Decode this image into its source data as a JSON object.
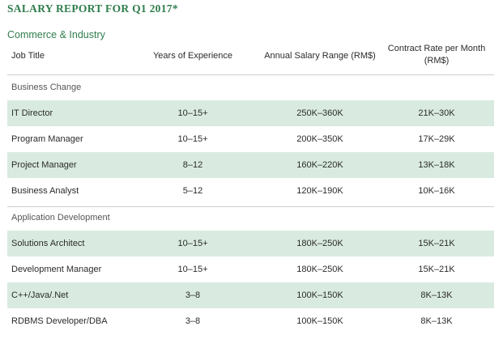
{
  "title": "SALARY REPORT FOR Q1 2017*",
  "section": "Commerce & Industry",
  "headers": {
    "job_title": "Job Title",
    "years": "Years of Experience",
    "salary": "Annual Salary Range (RM$)",
    "rate_line1": "Contract Rate per Month",
    "rate_line2": "(RM$)"
  },
  "groups": [
    {
      "label": "Business Change",
      "rows": [
        {
          "job": "IT Director",
          "years": "10–15+",
          "salary": "250K–360K",
          "rate": "21K–30K"
        },
        {
          "job": "Program Manager",
          "years": "10–15+",
          "salary": "200K–350K",
          "rate": "17K–29K"
        },
        {
          "job": "Project Manager",
          "years": "8–12",
          "salary": "160K–220K",
          "rate": "13K–18K"
        },
        {
          "job": "Business Analyst",
          "years": "5–12",
          "salary": "120K–190K",
          "rate": "10K–16K"
        }
      ]
    },
    {
      "label": "Application Development",
      "rows": [
        {
          "job": "Solutions Architect",
          "years": "10–15+",
          "salary": "180K–250K",
          "rate": "15K–21K"
        },
        {
          "job": "Development Manager",
          "years": "10–15+",
          "salary": "180K–250K",
          "rate": "15K–21K"
        },
        {
          "job": "C++/Java/.Net",
          "years": "3–8",
          "salary": "100K–150K",
          "rate": "8K–13K"
        },
        {
          "job": "RDBMS Developer/DBA",
          "years": "3–8",
          "salary": "100K–150K",
          "rate": "8K–13K"
        }
      ]
    }
  ],
  "colors": {
    "accent": "#2f7d4c",
    "row_shade": "#d9ebe0"
  }
}
